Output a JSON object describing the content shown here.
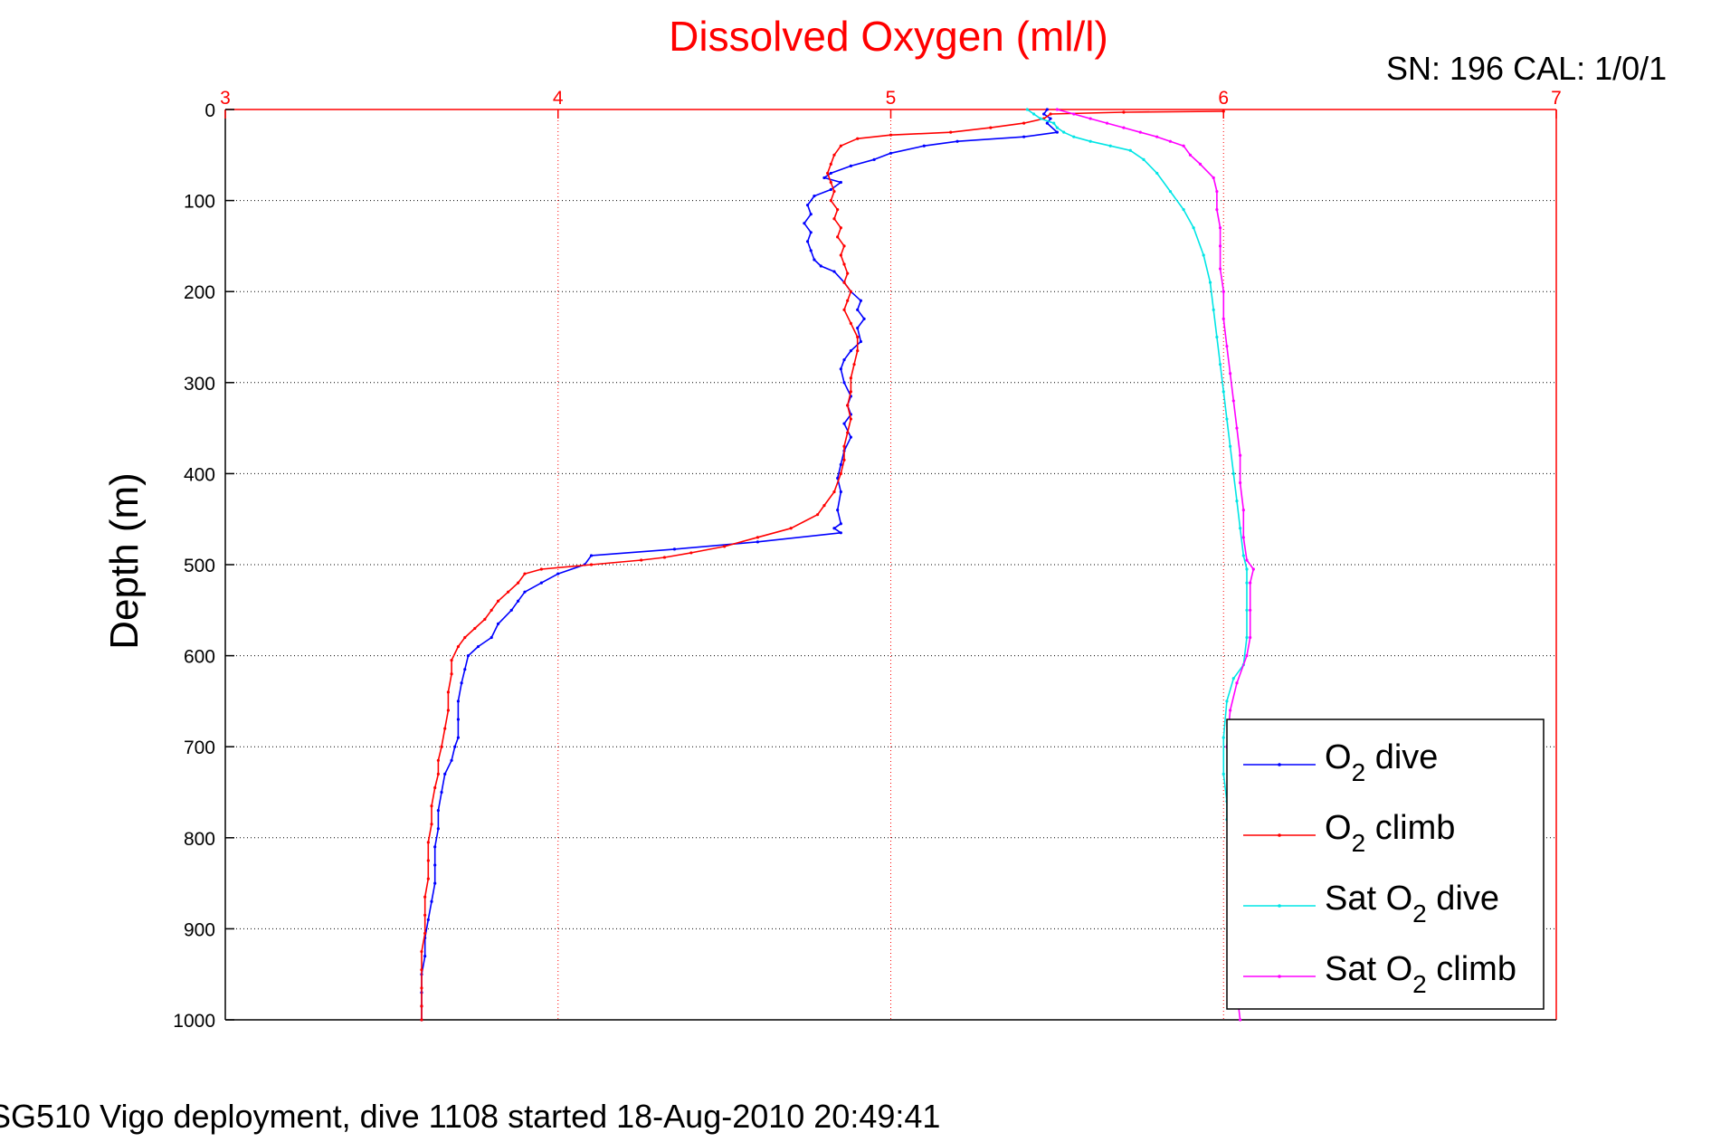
{
  "chart_data": {
    "type": "line",
    "title": "Dissolved Oxygen (ml/l)",
    "ylabel": "Depth (m)",
    "xlabel": "",
    "xlim": [
      3,
      7
    ],
    "ylim": [
      0,
      1000
    ],
    "y_reversed": true,
    "x_axis_position": "top",
    "x_ticks": [
      3,
      4,
      5,
      6,
      7
    ],
    "y_ticks": [
      0,
      100,
      200,
      300,
      400,
      500,
      600,
      700,
      800,
      900,
      1000
    ],
    "grid": true,
    "legend_position": "bottom-right",
    "annotation": "SN: 196  CAL: 1/0/1",
    "caption": "SG510 Vigo deployment, dive 1108 started 18-Aug-2010 20:49:41",
    "colors": {
      "title": "#ff0000",
      "xaxis": "#ff0000",
      "grid_x": "#ff0000",
      "grid_y": "#000000"
    },
    "series": [
      {
        "name": "O2 dive",
        "label_parts": [
          "O",
          "2",
          " dive"
        ],
        "color": "#0000ff",
        "points": [
          [
            5.47,
            0
          ],
          [
            5.46,
            5
          ],
          [
            5.48,
            10
          ],
          [
            5.47,
            15
          ],
          [
            5.5,
            25
          ],
          [
            5.4,
            30
          ],
          [
            5.2,
            35
          ],
          [
            5.1,
            40
          ],
          [
            5.0,
            48
          ],
          [
            4.95,
            55
          ],
          [
            4.88,
            62
          ],
          [
            4.82,
            70
          ],
          [
            4.8,
            75
          ],
          [
            4.85,
            80
          ],
          [
            4.82,
            88
          ],
          [
            4.77,
            95
          ],
          [
            4.75,
            105
          ],
          [
            4.76,
            115
          ],
          [
            4.74,
            125
          ],
          [
            4.76,
            135
          ],
          [
            4.75,
            145
          ],
          [
            4.76,
            155
          ],
          [
            4.77,
            165
          ],
          [
            4.79,
            172
          ],
          [
            4.83,
            178
          ],
          [
            4.86,
            190
          ],
          [
            4.88,
            200
          ],
          [
            4.91,
            210
          ],
          [
            4.9,
            220
          ],
          [
            4.92,
            230
          ],
          [
            4.9,
            240
          ],
          [
            4.91,
            255
          ],
          [
            4.88,
            265
          ],
          [
            4.86,
            275
          ],
          [
            4.85,
            285
          ],
          [
            4.86,
            300
          ],
          [
            4.88,
            315
          ],
          [
            4.87,
            325
          ],
          [
            4.88,
            335
          ],
          [
            4.86,
            345
          ],
          [
            4.88,
            360
          ],
          [
            4.86,
            375
          ],
          [
            4.85,
            390
          ],
          [
            4.84,
            405
          ],
          [
            4.85,
            420
          ],
          [
            4.84,
            440
          ],
          [
            4.85,
            455
          ],
          [
            4.83,
            460
          ],
          [
            4.85,
            465
          ],
          [
            4.6,
            475
          ],
          [
            4.35,
            483
          ],
          [
            4.1,
            490
          ],
          [
            4.08,
            500
          ],
          [
            4.0,
            510
          ],
          [
            3.95,
            520
          ],
          [
            3.9,
            530
          ],
          [
            3.88,
            540
          ],
          [
            3.86,
            550
          ],
          [
            3.82,
            565
          ],
          [
            3.8,
            580
          ],
          [
            3.76,
            590
          ],
          [
            3.73,
            600
          ],
          [
            3.72,
            615
          ],
          [
            3.71,
            630
          ],
          [
            3.7,
            650
          ],
          [
            3.7,
            670
          ],
          [
            3.7,
            690
          ],
          [
            3.69,
            700
          ],
          [
            3.68,
            715
          ],
          [
            3.66,
            730
          ],
          [
            3.65,
            750
          ],
          [
            3.64,
            770
          ],
          [
            3.64,
            790
          ],
          [
            3.63,
            810
          ],
          [
            3.63,
            830
          ],
          [
            3.63,
            850
          ],
          [
            3.62,
            870
          ],
          [
            3.61,
            890
          ],
          [
            3.6,
            910
          ],
          [
            3.6,
            930
          ],
          [
            3.59,
            950
          ],
          [
            3.59,
            970
          ],
          [
            3.59,
            985
          ],
          [
            3.59,
            1000
          ]
        ]
      },
      {
        "name": "O2 climb",
        "label_parts": [
          "O",
          "2",
          " climb"
        ],
        "color": "#ff0000",
        "points": [
          [
            6.0,
            2
          ],
          [
            5.7,
            3
          ],
          [
            5.48,
            5
          ],
          [
            5.46,
            10
          ],
          [
            5.4,
            15
          ],
          [
            5.3,
            20
          ],
          [
            5.18,
            25
          ],
          [
            5.0,
            28
          ],
          [
            4.9,
            32
          ],
          [
            4.85,
            40
          ],
          [
            4.83,
            50
          ],
          [
            4.82,
            60
          ],
          [
            4.81,
            70
          ],
          [
            4.82,
            80
          ],
          [
            4.83,
            90
          ],
          [
            4.82,
            100
          ],
          [
            4.84,
            110
          ],
          [
            4.83,
            120
          ],
          [
            4.85,
            130
          ],
          [
            4.84,
            140
          ],
          [
            4.86,
            150
          ],
          [
            4.85,
            160
          ],
          [
            4.86,
            170
          ],
          [
            4.87,
            180
          ],
          [
            4.86,
            190
          ],
          [
            4.88,
            200
          ],
          [
            4.87,
            210
          ],
          [
            4.86,
            220
          ],
          [
            4.88,
            235
          ],
          [
            4.9,
            250
          ],
          [
            4.9,
            265
          ],
          [
            4.89,
            280
          ],
          [
            4.88,
            295
          ],
          [
            4.88,
            310
          ],
          [
            4.87,
            325
          ],
          [
            4.88,
            340
          ],
          [
            4.87,
            355
          ],
          [
            4.86,
            370
          ],
          [
            4.86,
            385
          ],
          [
            4.85,
            400
          ],
          [
            4.83,
            420
          ],
          [
            4.8,
            435
          ],
          [
            4.78,
            445
          ],
          [
            4.7,
            460
          ],
          [
            4.6,
            470
          ],
          [
            4.5,
            480
          ],
          [
            4.4,
            487
          ],
          [
            4.32,
            492
          ],
          [
            4.25,
            495
          ],
          [
            4.1,
            500
          ],
          [
            3.95,
            505
          ],
          [
            3.9,
            510
          ],
          [
            3.88,
            520
          ],
          [
            3.85,
            530
          ],
          [
            3.82,
            540
          ],
          [
            3.8,
            550
          ],
          [
            3.78,
            560
          ],
          [
            3.75,
            570
          ],
          [
            3.72,
            580
          ],
          [
            3.7,
            590
          ],
          [
            3.68,
            605
          ],
          [
            3.68,
            620
          ],
          [
            3.67,
            640
          ],
          [
            3.67,
            660
          ],
          [
            3.66,
            680
          ],
          [
            3.65,
            700
          ],
          [
            3.64,
            715
          ],
          [
            3.64,
            730
          ],
          [
            3.63,
            745
          ],
          [
            3.62,
            765
          ],
          [
            3.62,
            785
          ],
          [
            3.61,
            805
          ],
          [
            3.61,
            825
          ],
          [
            3.61,
            845
          ],
          [
            3.6,
            865
          ],
          [
            3.6,
            885
          ],
          [
            3.6,
            905
          ],
          [
            3.59,
            925
          ],
          [
            3.59,
            945
          ],
          [
            3.59,
            965
          ],
          [
            3.59,
            985
          ],
          [
            3.59,
            1000
          ]
        ]
      },
      {
        "name": "Sat O2 dive",
        "label_parts": [
          "Sat O",
          "2",
          " dive"
        ],
        "color": "#00e5e5",
        "points": [
          [
            5.41,
            0
          ],
          [
            5.43,
            5
          ],
          [
            5.45,
            10
          ],
          [
            5.49,
            15
          ],
          [
            5.5,
            20
          ],
          [
            5.52,
            25
          ],
          [
            5.55,
            30
          ],
          [
            5.6,
            35
          ],
          [
            5.66,
            40
          ],
          [
            5.72,
            45
          ],
          [
            5.76,
            55
          ],
          [
            5.8,
            70
          ],
          [
            5.84,
            90
          ],
          [
            5.88,
            110
          ],
          [
            5.91,
            130
          ],
          [
            5.94,
            160
          ],
          [
            5.96,
            190
          ],
          [
            5.97,
            220
          ],
          [
            5.98,
            250
          ],
          [
            5.99,
            280
          ],
          [
            6.0,
            310
          ],
          [
            6.01,
            340
          ],
          [
            6.02,
            370
          ],
          [
            6.03,
            400
          ],
          [
            6.04,
            430
          ],
          [
            6.05,
            460
          ],
          [
            6.06,
            490
          ],
          [
            6.07,
            505
          ],
          [
            6.07,
            520
          ],
          [
            6.07,
            550
          ],
          [
            6.07,
            580
          ],
          [
            6.06,
            610
          ],
          [
            6.03,
            625
          ],
          [
            6.01,
            650
          ],
          [
            6.0,
            690
          ],
          [
            6.0,
            730
          ],
          [
            6.01,
            760
          ],
          [
            6.01,
            780
          ]
        ]
      },
      {
        "name": "Sat O2 climb",
        "label_parts": [
          "Sat O",
          "2",
          " climb"
        ],
        "color": "#ff00ff",
        "points": [
          [
            5.5,
            0
          ],
          [
            5.55,
            5
          ],
          [
            5.6,
            10
          ],
          [
            5.65,
            15
          ],
          [
            5.7,
            20
          ],
          [
            5.75,
            25
          ],
          [
            5.8,
            30
          ],
          [
            5.84,
            35
          ],
          [
            5.88,
            40
          ],
          [
            5.9,
            50
          ],
          [
            5.93,
            60
          ],
          [
            5.97,
            75
          ],
          [
            5.98,
            90
          ],
          [
            5.98,
            110
          ],
          [
            5.99,
            130
          ],
          [
            5.99,
            150
          ],
          [
            5.99,
            175
          ],
          [
            6.0,
            200
          ],
          [
            6.0,
            230
          ],
          [
            6.01,
            260
          ],
          [
            6.02,
            290
          ],
          [
            6.03,
            320
          ],
          [
            6.04,
            350
          ],
          [
            6.05,
            380
          ],
          [
            6.05,
            410
          ],
          [
            6.06,
            440
          ],
          [
            6.06,
            470
          ],
          [
            6.07,
            495
          ],
          [
            6.09,
            505
          ],
          [
            6.08,
            520
          ],
          [
            6.08,
            550
          ],
          [
            6.08,
            580
          ],
          [
            6.07,
            600
          ],
          [
            6.04,
            630
          ],
          [
            6.02,
            660
          ],
          [
            6.01,
            700
          ],
          [
            6.02,
            740
          ],
          [
            6.02,
            780
          ],
          [
            6.02,
            820
          ],
          [
            6.03,
            860
          ],
          [
            6.03,
            900
          ],
          [
            6.04,
            940
          ],
          [
            6.04,
            970
          ],
          [
            6.05,
            1000
          ]
        ]
      }
    ]
  }
}
